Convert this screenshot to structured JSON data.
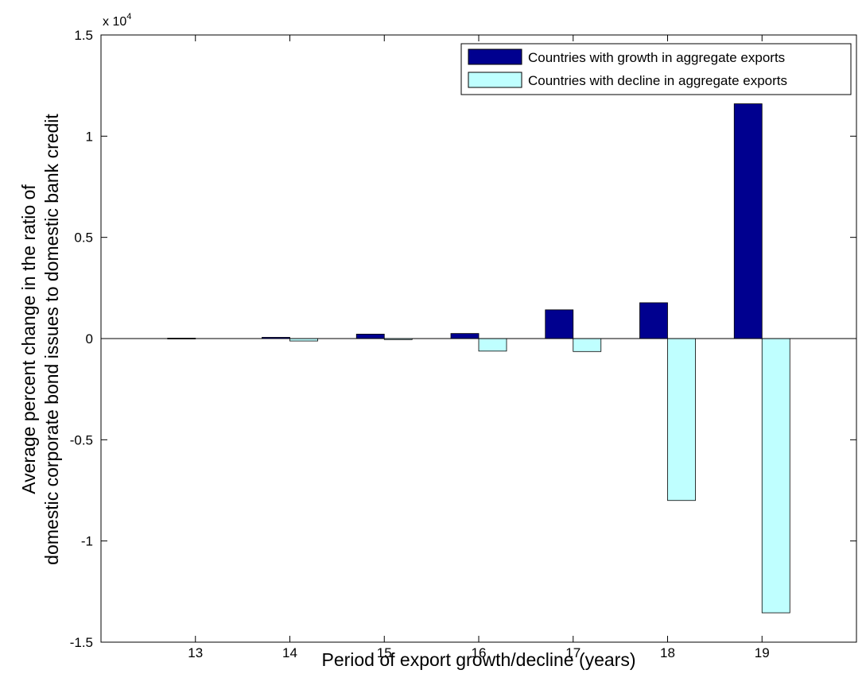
{
  "chart_data": {
    "type": "bar",
    "categories": [
      "13",
      "14",
      "15",
      "16",
      "17",
      "18",
      "19"
    ],
    "series": [
      {
        "name": "Countries with growth in aggregate exports",
        "color": "#00008f",
        "values": [
          20,
          60,
          220,
          250,
          1420,
          1770,
          11600
        ]
      },
      {
        "name": "Countries with decline in aggregate exports",
        "color": "#bfffff",
        "values": [
          0,
          -120,
          -50,
          -620,
          -640,
          -8000,
          -13550
        ]
      }
    ],
    "xlabel": "Period of export growth/decline (years)",
    "ylabel_lines": [
      "Average percent change in the ratio of",
      "domestic corporate bond issues to domestic bank credit"
    ],
    "multiplier_label": "x 10",
    "multiplier_exponent": "4",
    "ylim": [
      -15000,
      15000
    ],
    "yticks": [
      {
        "value": 15000,
        "label": "1.5"
      },
      {
        "value": 10000,
        "label": "1"
      },
      {
        "value": 5000,
        "label": "0.5"
      },
      {
        "value": 0,
        "label": "0"
      },
      {
        "value": -5000,
        "label": "-0.5"
      },
      {
        "value": -10000,
        "label": "-1"
      },
      {
        "value": -15000,
        "label": "-1.5"
      }
    ],
    "grid": false,
    "legend_position": "top-right"
  }
}
